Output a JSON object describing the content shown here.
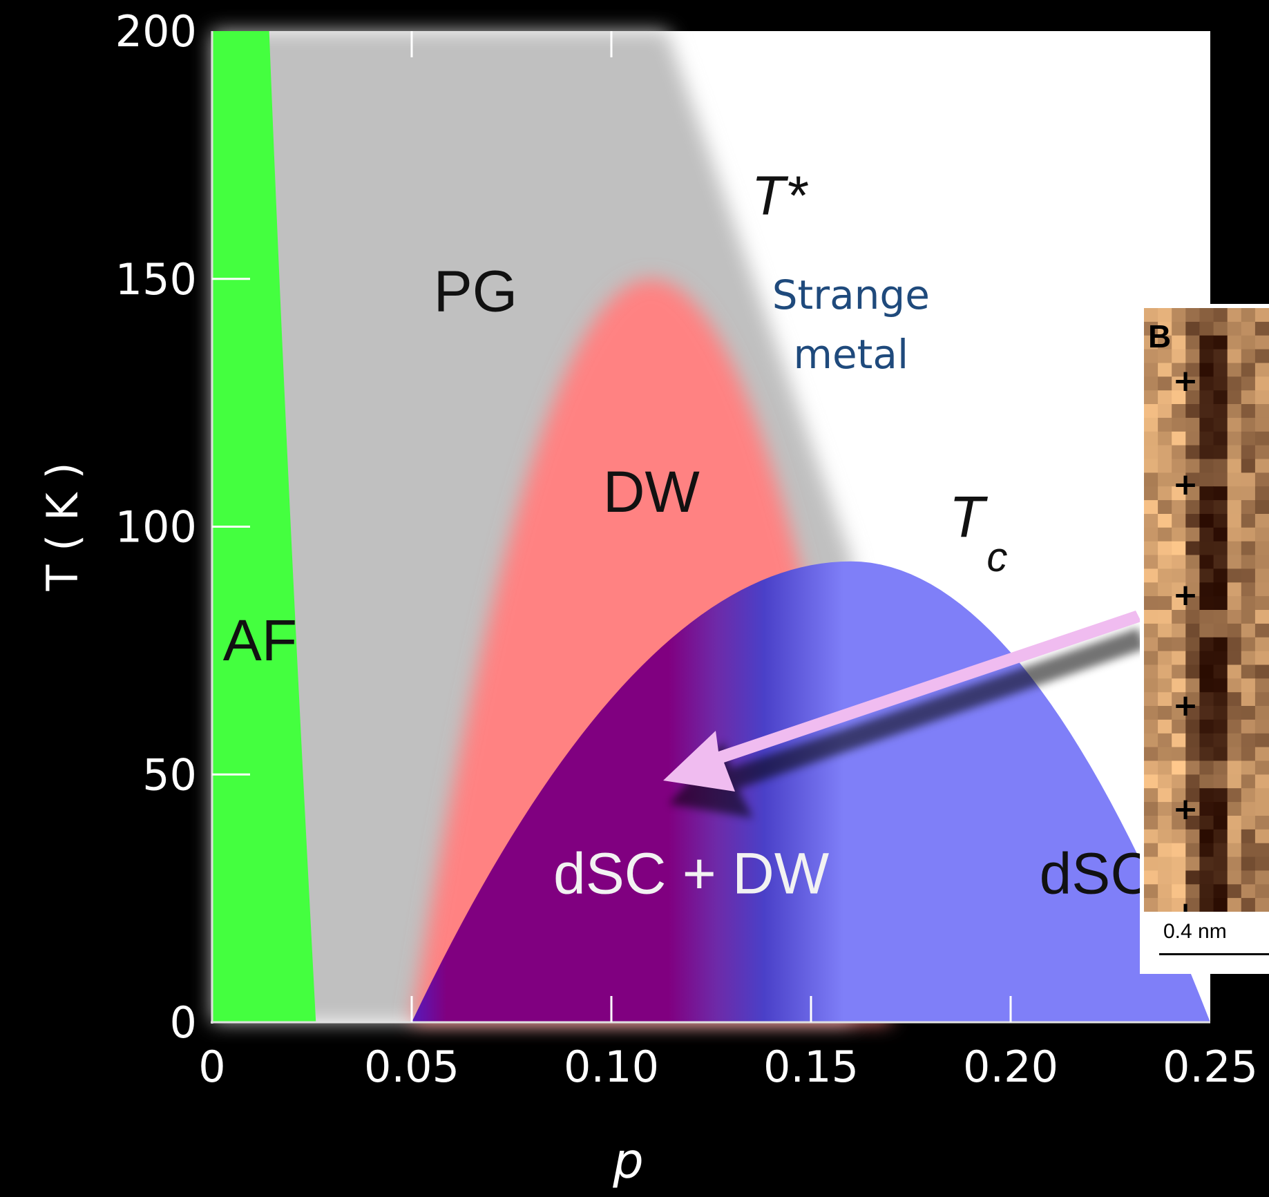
{
  "chart_data": {
    "type": "area",
    "xlabel": "p",
    "ylabel": "T ( K )",
    "xlim": [
      0,
      0.25
    ],
    "ylim": [
      0,
      200
    ],
    "x_ticks": [
      "0",
      "0.05",
      "0.10",
      "0.15",
      "0.20",
      "0.25"
    ],
    "y_ticks": [
      "0",
      "50",
      "100",
      "150",
      "200"
    ],
    "regions": [
      {
        "name": "AF",
        "color": "#44ff3f",
        "p_max": 0.026
      },
      {
        "name": "PG",
        "color": "#c0c0c0",
        "boundary": [
          [
            0.15,
            93
          ],
          [
            0.1,
            200
          ]
        ]
      },
      {
        "name": "DW",
        "color": "#ff8282",
        "p_range": [
          0.05,
          0.17
        ],
        "peak": [
          0.11,
          150
        ]
      },
      {
        "name": "dSC + DW",
        "color": "#800080"
      },
      {
        "name": "dSC",
        "color": "#7f7ff8"
      }
    ],
    "tc_dome": {
      "p_range": [
        0.05,
        0.25
      ],
      "peak": [
        0.16,
        93
      ]
    },
    "labels": {
      "t_star": "T*",
      "strange_metal_line1": "Strange",
      "strange_metal_line2": "metal",
      "t_c_main": "T",
      "t_c_sub": "c"
    },
    "colors": {
      "strange_metal": "#1f4a7c",
      "arrow": "#f0bcf0"
    },
    "inset": {
      "panel_label": "B",
      "scale_label": "0.4 nm",
      "markers": [
        "+",
        "+",
        "+",
        "+",
        "+",
        "+"
      ]
    }
  }
}
